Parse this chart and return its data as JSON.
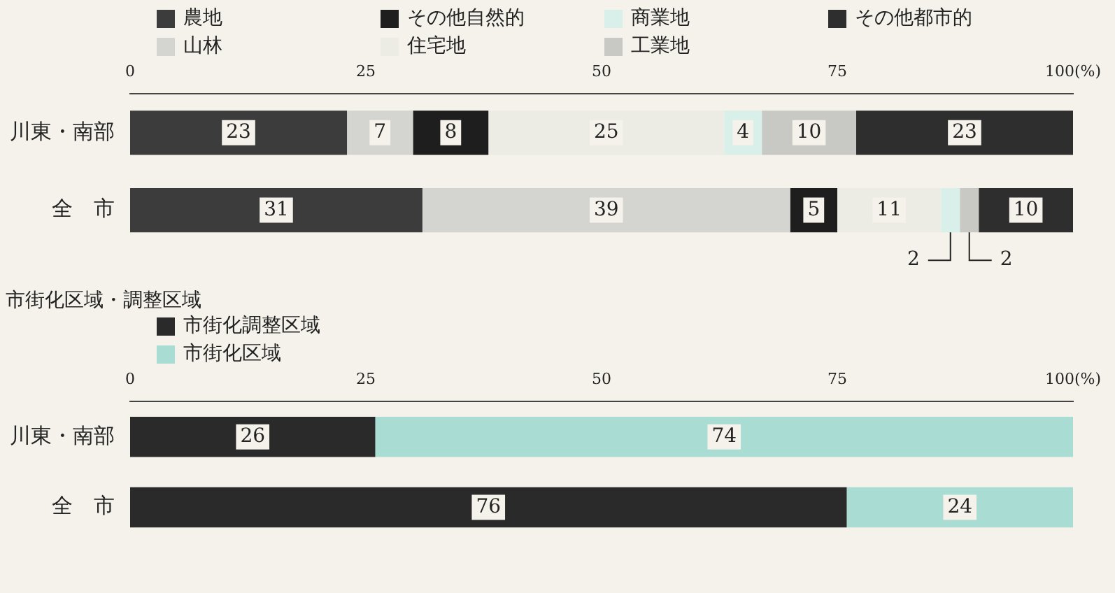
{
  "chart_data": [
    {
      "type": "bar",
      "orientation": "horizontal",
      "stacked": true,
      "categories": [
        "川東・南部",
        "全　市"
      ],
      "series": [
        {
          "name": "農地",
          "color": "#3c3c3c",
          "values": [
            23,
            31
          ]
        },
        {
          "name": "山林",
          "color": "#d4d4d0",
          "values": [
            7,
            39
          ]
        },
        {
          "name": "その他自然的",
          "color": "#1e1e1e",
          "values": [
            8,
            5
          ]
        },
        {
          "name": "住宅地",
          "color": "#ecebe4",
          "values": [
            25,
            11
          ]
        },
        {
          "name": "商業地",
          "color": "#d8efea",
          "values": [
            4,
            2
          ]
        },
        {
          "name": "工業地",
          "color": "#c8c8c4",
          "values": [
            10,
            2
          ]
        },
        {
          "name": "その他都市的",
          "color": "#2e2e2e",
          "values": [
            23,
            10
          ]
        }
      ],
      "xlim": [
        0,
        100
      ],
      "xticks": [
        0,
        25,
        50,
        75,
        {
          "value": 100,
          "label": "100(%)"
        }
      ],
      "grid": false,
      "legend": "top",
      "data_labels": true
    },
    {
      "type": "bar",
      "orientation": "horizontal",
      "stacked": true,
      "title": "市街化区域・調整区域",
      "categories": [
        "川東・南部",
        "全　市"
      ],
      "series": [
        {
          "name": "市街化調整区域",
          "color": "#2a2a2a",
          "values": [
            26,
            76
          ]
        },
        {
          "name": "市街化区域",
          "color": "#a9dcd2",
          "values": [
            74,
            24
          ]
        }
      ],
      "xlim": [
        0,
        100
      ],
      "xticks": [
        0,
        25,
        50,
        75,
        {
          "value": 100,
          "label": "100(%)"
        }
      ],
      "grid": false,
      "legend": "top left",
      "data_labels": true
    }
  ]
}
